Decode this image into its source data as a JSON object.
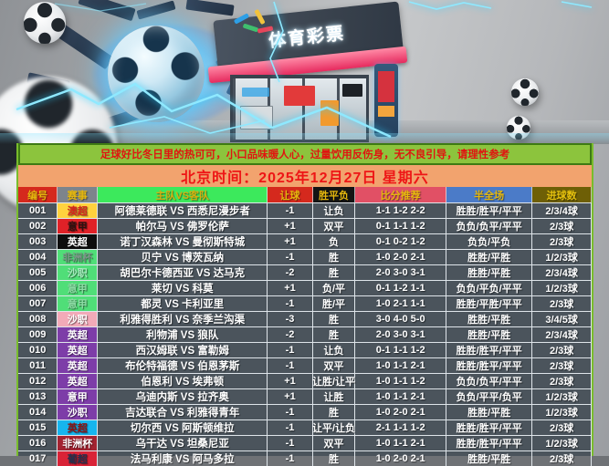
{
  "hero": {
    "store_sign": "体育彩票"
  },
  "notice": "足球好比冬日里的热可可，小口品味暖人心，过量饮用反伤身，无不良引导，请理性参考",
  "datetime_title": "北京时间：2025年12月27日 星期六",
  "colors": {
    "panel_border": "#79bc2c",
    "notice_bg": "#8cc43d",
    "notice_fg": "#e01410",
    "title_bg": "#f2a36e",
    "title_fg": "#ee1616",
    "row_bg": "#4b545c",
    "grid_line": "#dfe5ea",
    "row_fg": "#ffffff"
  },
  "table": {
    "headers": [
      {
        "label": "编号",
        "bg": "#d5291d",
        "fg": "#e6b80e"
      },
      {
        "label": "赛事",
        "bg": "#7d848c",
        "fg": "#e6b80e"
      },
      {
        "label": "主队VS客队",
        "bg": "#3ce95c",
        "fg": "#d6ae10"
      },
      {
        "label": "让球",
        "bg": "#d5291d",
        "fg": "#e6b80e"
      },
      {
        "label": "胜平负",
        "bg": "#141414",
        "fg": "#e6b80e"
      },
      {
        "label": "比分推荐",
        "bg": "#e15065",
        "fg": "#e6b80e"
      },
      {
        "label": "半全场",
        "bg": "#4b7bc8",
        "fg": "#e6b80e"
      },
      {
        "label": "进球数",
        "bg": "#6e5f06",
        "fg": "#e6c20e"
      }
    ],
    "rows": [
      {
        "id": "001",
        "league": "澳超",
        "league_bg": "#ffd23e",
        "league_fg": "#d4261e",
        "match": "阿德莱德联 VS 西悉尼漫步者",
        "handicap": "-1",
        "spf": "让负",
        "scores": "1-1 1-2 2-2",
        "half_full": "胜胜/胜平/平平",
        "goals": "2/3/4球"
      },
      {
        "id": "002",
        "league": "意甲",
        "league_bg": "#e02127",
        "league_fg": "#2a1210",
        "match": "帕尔马 VS 佛罗伦萨",
        "handicap": "+1",
        "spf": "双平",
        "scores": "0-1 1-1 1-2",
        "half_full": "负负/负平/平平",
        "goals": "2/3球"
      },
      {
        "id": "003",
        "league": "英超",
        "league_bg": "#0d0d0d",
        "league_fg": "#ffffff",
        "match": "诺丁汉森林 VS 曼彻斯特城",
        "handicap": "+1",
        "spf": "负",
        "scores": "0-1 0-2 1-2",
        "half_full": "负负/平负",
        "goals": "2/3球"
      },
      {
        "id": "004",
        "league": "非洲杯",
        "league_bg": "#50de78",
        "league_fg": "#7e948a",
        "match": "贝宁 VS 博茨瓦纳",
        "handicap": "-1",
        "spf": "胜",
        "scores": "1-0 2-0 2-1",
        "half_full": "胜胜/平胜",
        "goals": "1/2/3球"
      },
      {
        "id": "005",
        "league": "沙职",
        "league_bg": "#50de78",
        "league_fg": "#a8ecc0",
        "match": "胡巴尔卡德西亚 VS 达马克",
        "handicap": "-2",
        "spf": "胜",
        "scores": "2-0 3-0 3-1",
        "half_full": "胜胜/平胜",
        "goals": "2/3/4球"
      },
      {
        "id": "006",
        "league": "意甲",
        "league_bg": "#50de78",
        "league_fg": "#8edca6",
        "match": "莱切 VS 科莫",
        "handicap": "+1",
        "spf": "负/平",
        "scores": "0-1 1-2 1-1",
        "half_full": "负负/平负/平平",
        "goals": "1/2/3球"
      },
      {
        "id": "007",
        "league": "意甲",
        "league_bg": "#50de78",
        "league_fg": "#8edca6",
        "match": "都灵 VS 卡利亚里",
        "handicap": "-1",
        "spf": "胜/平",
        "scores": "1-0 2-1 1-1",
        "half_full": "胜胜/平胜/平平",
        "goals": "2/3球"
      },
      {
        "id": "008",
        "league": "沙职",
        "league_bg": "#f2aab8",
        "league_fg": "#ffffff",
        "match": "利雅得胜利 VS 奈季兰沟渠",
        "handicap": "-3",
        "spf": "胜",
        "scores": "3-0 4-0 5-0",
        "half_full": "胜胜/平胜",
        "goals": "3/4/5球"
      },
      {
        "id": "009",
        "league": "英超",
        "league_bg": "#7d3da8",
        "league_fg": "#ffffff",
        "match": "利物浦 VS 狼队",
        "handicap": "-2",
        "spf": "胜",
        "scores": "2-0 3-0 3-1",
        "half_full": "胜胜/平胜",
        "goals": "2/3/4球"
      },
      {
        "id": "010",
        "league": "英超",
        "league_bg": "#7d3da8",
        "league_fg": "#ffffff",
        "match": "西汉姆联 VS 富勒姆",
        "handicap": "-1",
        "spf": "让负",
        "scores": "0-1 1-1 1-2",
        "half_full": "胜胜/胜平/平平",
        "goals": "2/3球"
      },
      {
        "id": "011",
        "league": "英超",
        "league_bg": "#7d3da8",
        "league_fg": "#ffffff",
        "match": "布伦特福德 VS 伯恩茅斯",
        "handicap": "-1",
        "spf": "双平",
        "scores": "1-0 1-1 2-1",
        "half_full": "胜胜/胜平/平平",
        "goals": "2/3球"
      },
      {
        "id": "012",
        "league": "英超",
        "league_bg": "#7d3da8",
        "league_fg": "#ffffff",
        "match": "伯恩利 VS 埃弗顿",
        "handicap": "+1",
        "spf": "让胜/让平",
        "scores": "1-0 1-1 1-2",
        "half_full": "负负/负平/平平",
        "goals": "2/3球"
      },
      {
        "id": "013",
        "league": "意甲",
        "league_bg": "#7d3da8",
        "league_fg": "#ffffff",
        "match": "乌迪内斯 VS 拉齐奥",
        "handicap": "+1",
        "spf": "让胜",
        "scores": "1-0 1-1 2-1",
        "half_full": "负负/平平/负平",
        "goals": "1/2/3球"
      },
      {
        "id": "014",
        "league": "沙职",
        "league_bg": "#7d3da8",
        "league_fg": "#ffffff",
        "match": "吉达联合 VS 利雅得青年",
        "handicap": "-1",
        "spf": "胜",
        "scores": "1-0 2-0 2-1",
        "half_full": "胜胜/平胜",
        "goals": "1/2/3球"
      },
      {
        "id": "015",
        "league": "英超",
        "league_bg": "#17b5ee",
        "league_fg": "#8c1212",
        "match": "切尔西 VS 阿斯顿维拉",
        "handicap": "-1",
        "spf": "让平/让负",
        "scores": "2-1 1-1 1-2",
        "half_full": "胜胜/胜平/平平",
        "goals": "2/3球"
      },
      {
        "id": "016",
        "league": "非洲杯",
        "league_bg": "#a32331",
        "league_fg": "#ffffff",
        "match": "乌干达 VS 坦桑尼亚",
        "handicap": "-1",
        "spf": "双平",
        "scores": "1-0 1-1 2-1",
        "half_full": "胜胜/胜平/平平",
        "goals": "1/2/3球"
      },
      {
        "id": "017",
        "league": "葡超",
        "league_bg": "#d92337",
        "league_fg": "#26304e",
        "match": "法马利康 VS 阿马多拉",
        "handicap": "-1",
        "spf": "胜",
        "scores": "1-0 2-0 2-1",
        "half_full": "胜胜/平胜",
        "goals": "2/3球"
      }
    ]
  }
}
